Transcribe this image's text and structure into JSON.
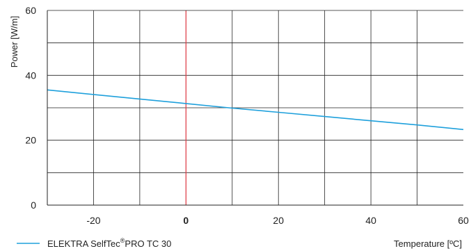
{
  "chart_data": {
    "type": "line",
    "title": "",
    "xlabel": "Temperature [ºC]",
    "ylabel": "Power [W/m]",
    "xlim": [
      -30,
      60
    ],
    "ylim": [
      0,
      60
    ],
    "x_grid_step": 10,
    "y_grid_step": 10,
    "x_tick_labels": [
      {
        "value": -20,
        "label": "-20",
        "bold": false
      },
      {
        "value": 0,
        "label": "0",
        "bold": true
      },
      {
        "value": 20,
        "label": "20",
        "bold": false
      },
      {
        "value": 40,
        "label": "40",
        "bold": false
      },
      {
        "value": 60,
        "label": "60",
        "bold": false
      }
    ],
    "y_tick_labels": [
      {
        "value": 0,
        "label": "0"
      },
      {
        "value": 20,
        "label": "20"
      },
      {
        "value": 40,
        "label": "40"
      },
      {
        "value": 60,
        "label": "60"
      }
    ],
    "grid": true,
    "reference_line": {
      "x": 0,
      "color": "#e8404a"
    },
    "legend_position": "bottom-left",
    "series": [
      {
        "name": "ELEKTRA SelfTec®PRO TC 30",
        "name_main": "ELEKTRA SelfTec",
        "name_sup": "®",
        "name_rest": "PRO TC 30",
        "color": "#1ea0dc",
        "x": [
          -30,
          -20,
          -10,
          0,
          10,
          20,
          30,
          40,
          50,
          60
        ],
        "y": [
          35.5,
          34.1,
          32.7,
          31.3,
          29.9,
          28.6,
          27.3,
          26.0,
          24.7,
          23.3
        ]
      }
    ]
  }
}
